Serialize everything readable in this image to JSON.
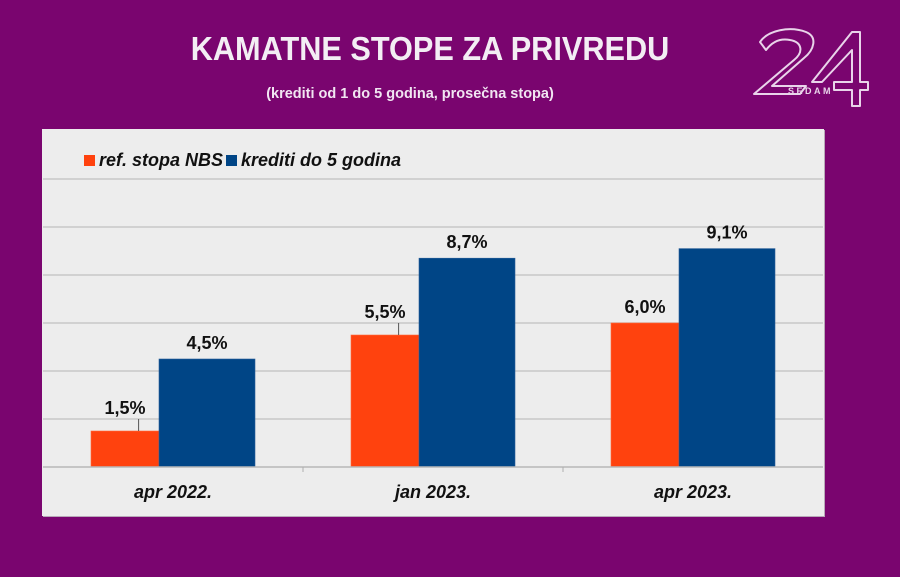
{
  "header": {
    "title": "KAMATNE STOPE ZA PRIVREDU",
    "subtitle": "(krediti od 1 do 5 godina, prosečna stopa)",
    "logo": {
      "number": "24",
      "text": "SEDAM"
    }
  },
  "colors": {
    "background": "#7a056f",
    "plot_background": "#ededed",
    "gridline": "#c8c8c8",
    "series_ref": "#ff420e",
    "series_credit": "#004586"
  },
  "chart_data": {
    "type": "bar",
    "title": "KAMATNE STOPE ZA PRIVREDU",
    "subtitle": "(krediti od 1 do 5 godina, prosečna stopa)",
    "categories": [
      "apr 2022.",
      "jan 2023.",
      "apr 2023."
    ],
    "series": [
      {
        "name": "ref. stopa NBS",
        "color": "#ff420e",
        "values": [
          1.5,
          5.5,
          6.0
        ],
        "labels": [
          "1,5%",
          "5,5%",
          "6,0%"
        ]
      },
      {
        "name": "krediti do 5 godina",
        "color": "#004586",
        "values": [
          4.5,
          8.7,
          9.1
        ],
        "labels": [
          "4,5%",
          "8,7%",
          "9,1%"
        ]
      }
    ],
    "xlabel": "",
    "ylabel": "",
    "ylim": [
      0,
      12
    ],
    "ytick_step": 2,
    "y_tick_labels_visible": false,
    "grid": true,
    "legend_position": "top-left",
    "unit": "%"
  }
}
